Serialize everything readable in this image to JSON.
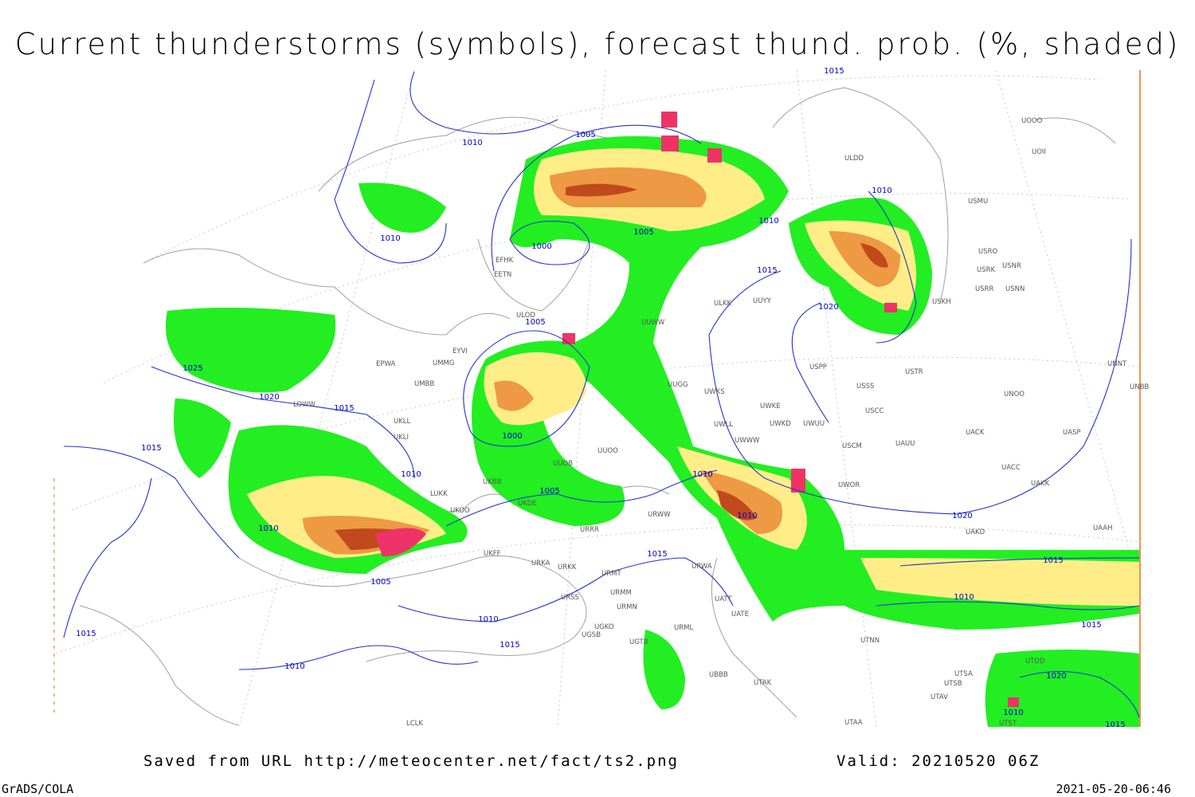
{
  "header": {
    "title": "Current thunderstorms (symbols), forecast thund. prob. (%, shaded)"
  },
  "isobar_labels": [
    "1005",
    "1010",
    "1010",
    "1000",
    "1005",
    "1010",
    "1015",
    "1020",
    "1010",
    "1005",
    "1025",
    "1020",
    "1015",
    "1015",
    "1000",
    "1010",
    "1005",
    "1010",
    "1010",
    "1020",
    "1010",
    "1005",
    "1015",
    "1010",
    "1015",
    "1010",
    "1015",
    "1015",
    "1010",
    "1015",
    "1020",
    "1010",
    "1015",
    "1015"
  ],
  "stations": [
    "ULDD",
    "USMU",
    "USRO",
    "USRK",
    "USNR",
    "USRR",
    "USNN",
    "USKH",
    "UUYY",
    "ULKK",
    "ULOD",
    "UMMG",
    "EPWA",
    "EYVI",
    "UMBB",
    "UUWW",
    "UUGG",
    "UWKS",
    "UWKE",
    "UWKD",
    "UWUU",
    "UWWW",
    "UWLL",
    "USSS",
    "USTR",
    "USCC",
    "USPP",
    "UNOO",
    "UACK",
    "USCM",
    "UAUU",
    "UWOR",
    "UACC",
    "UAKK",
    "UAKD",
    "UASP",
    "UNNT",
    "UNBB",
    "UAAH",
    "UKLL",
    "UKLI",
    "LUKK",
    "UKOO",
    "UKFF",
    "URKA",
    "URKK",
    "URMT",
    "URSS",
    "URMM",
    "URMN",
    "UGKO",
    "UGSB",
    "UGTB",
    "URML",
    "URWA",
    "URWW",
    "URRR",
    "UKDE",
    "UKBB",
    "UUOB",
    "UUOO",
    "UATT",
    "UATE",
    "UBBB",
    "UTAK",
    "UTNN",
    "UTSA",
    "UTSB",
    "UTAV",
    "UTST",
    "UTAA",
    "UTDD",
    "LCLK",
    "EETN",
    "EFHK",
    "LOWW",
    "UOII",
    "UOOO"
  ],
  "footer": {
    "source": "Saved from URL http://meteocenter.net/fact/ts2.png",
    "valid": "Valid: 20210520 06Z",
    "software": "GrADS/COLA",
    "timestamp": "2021-05-20-06:46"
  }
}
